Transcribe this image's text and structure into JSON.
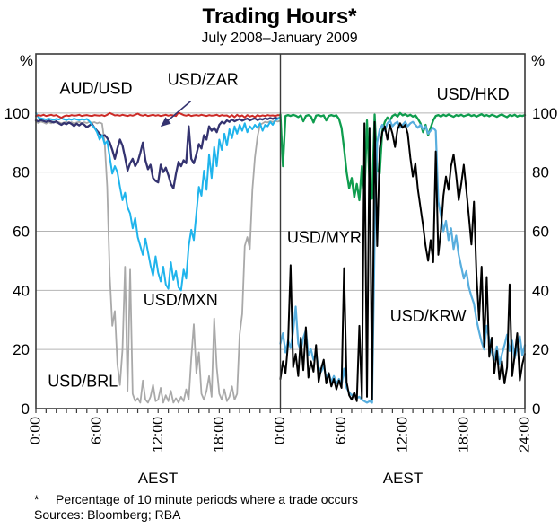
{
  "title": "Trading Hours*",
  "subtitle": "July 2008–January 2009",
  "footnote": {
    "marker": "*",
    "text": "Percentage of 10 minute periods where a trade occurs",
    "sources": "Sources: Bloomberg; RBA"
  },
  "chart_data": {
    "type": "line",
    "title": "Trading Hours*",
    "subtitle": "July 2008–January 2009",
    "unit_label": "%",
    "ylim": [
      0,
      120
    ],
    "yticks": [
      0,
      20,
      40,
      60,
      80,
      100
    ],
    "grid_on": true,
    "grid_color": "#b4b4b4",
    "frame_color": "#3a3a3a",
    "x_hours_per_panel": 24,
    "points_per_hour": 4,
    "panels": [
      {
        "id": "left",
        "axis_caption": "AEST",
        "xticks": [
          {
            "h": 0,
            "label": "0:00"
          },
          {
            "h": 6,
            "label": "6:00"
          },
          {
            "h": 12,
            "label": "12:00"
          },
          {
            "h": 18,
            "label": "18:00"
          }
        ],
        "series": [
          {
            "name": "USD/BRL",
            "color": "#a9a9a9",
            "width": 1.8,
            "values": [
              97.0,
              96.6,
              97.1,
              96.8,
              96.4,
              96.9,
              96.5,
              97.0,
              96.7,
              96.9,
              96.5,
              96.8,
              97.0,
              96.6,
              96.9,
              96.4,
              96.8,
              97.0,
              96.5,
              96.9,
              96.6,
              97.0,
              96.7,
              96.9,
              96.5,
              96.8,
              96.4,
              90.0,
              75.0,
              45.0,
              28.0,
              33.0,
              15.0,
              8.0,
              20.0,
              48.0,
              6.0,
              47.0,
              5.0,
              2.5,
              3.5,
              2.0,
              9.5,
              3.0,
              2.0,
              4.0,
              8.0,
              2.5,
              3.0,
              7.0,
              2.0,
              4.5,
              2.5,
              6.0,
              2.0,
              3.5,
              2.0,
              4.0,
              2.5,
              6.5,
              3.0,
              17.0,
              28.5,
              12.0,
              19.0,
              5.0,
              3.0,
              6.0,
              11.0,
              4.0,
              30.5,
              14.0,
              5.0,
              3.0,
              6.5,
              2.5,
              4.0,
              7.5,
              3.0,
              5.0,
              25.0,
              32.0,
              55.0,
              58.0,
              54.0,
              74.0,
              85.0,
              92.0,
              96.0,
              96.5,
              97.0,
              96.8,
              97.2,
              97.0,
              97.3,
              97.1,
              97.4
            ]
          },
          {
            "name": "USD/ZAR",
            "color": "#343370",
            "width": 2.3,
            "values": [
              97.5,
              97.2,
              97.6,
              97.3,
              97.0,
              97.4,
              97.1,
              96.8,
              97.2,
              96.5,
              96.0,
              96.6,
              96.2,
              96.8,
              96.3,
              95.6,
              96.4,
              95.8,
              96.5,
              96.0,
              95.2,
              95.8,
              96.3,
              95.0,
              94.0,
              93.0,
              92.0,
              92.5,
              91.5,
              90.0,
              87.5,
              84.5,
              88.0,
              91.0,
              89.0,
              85.0,
              80.5,
              83.0,
              84.5,
              82.0,
              83.5,
              86.5,
              90.0,
              84.0,
              81.0,
              82.5,
              78.0,
              77.0,
              76.5,
              82.5,
              80.0,
              81.5,
              79.0,
              76.0,
              74.5,
              79.5,
              83.5,
              82.0,
              84.0,
              83.0,
              95.5,
              84.5,
              83.0,
              86.0,
              89.5,
              88.0,
              92.5,
              91.0,
              95.5,
              94.0,
              95.0,
              93.5,
              96.0,
              97.0,
              96.5,
              97.5,
              97.0,
              97.8,
              97.2,
              97.6,
              98.0,
              97.4,
              97.8,
              98.1,
              97.5,
              97.9,
              98.2,
              97.6,
              98.0,
              97.8,
              98.2,
              97.9,
              98.3,
              98.0,
              98.4,
              98.1,
              98.5
            ]
          },
          {
            "name": "USD/MXN",
            "color": "#1fb4ec",
            "width": 2.0,
            "values": [
              100.0,
              98.5,
              98.2,
              98.0,
              97.8,
              98.1,
              97.9,
              97.7,
              98.0,
              97.8,
              98.2,
              97.9,
              97.6,
              98.0,
              97.7,
              98.1,
              97.8,
              97.6,
              97.9,
              97.7,
              98.0,
              97.2,
              96.0,
              95.0,
              93.5,
              91.0,
              92.5,
              89.5,
              90.5,
              85.0,
              79.5,
              82.0,
              80.0,
              75.0,
              70.5,
              73.0,
              68.0,
              66.0,
              61.0,
              64.5,
              58.0,
              55.0,
              52.0,
              57.5,
              53.0,
              48.5,
              45.0,
              51.5,
              46.0,
              43.0,
              48.0,
              42.0,
              40.5,
              49.5,
              43.5,
              46.5,
              41.0,
              40.0,
              47.0,
              44.0,
              55.0,
              60.5,
              57.0,
              66.0,
              75.0,
              72.0,
              80.5,
              74.0,
              86.0,
              78.0,
              88.5,
              82.0,
              91.0,
              87.5,
              93.0,
              89.0,
              94.5,
              91.5,
              95.5,
              93.0,
              96.0,
              94.0,
              96.5,
              93.5,
              95.5,
              94.5,
              96.0,
              95.0,
              96.5,
              94.0,
              96.0,
              95.5,
              97.0,
              96.0,
              97.5,
              98.0,
              98.5
            ]
          },
          {
            "name": "AUD/USD",
            "color": "#cc2a26",
            "width": 2.0,
            "values": [
              99.0,
              99.3,
              99.1,
              99.4,
              99.0,
              99.2,
              99.4,
              99.1,
              99.3,
              98.8,
              98.4,
              98.9,
              99.2,
              99.0,
              99.3,
              99.1,
              99.2,
              99.4,
              99.0,
              99.2,
              99.3,
              99.1,
              99.0,
              99.3,
              99.2,
              99.1,
              99.3,
              99.0,
              99.4,
              100.0,
              99.6,
              99.2,
              99.3,
              99.1,
              99.4,
              99.2,
              99.0,
              99.3,
              99.1,
              99.4,
              99.8,
              99.3,
              99.1,
              99.4,
              99.0,
              99.2,
              99.4,
              99.1,
              99.3,
              99.0,
              99.2,
              99.4,
              99.1,
              99.3,
              99.2,
              99.0,
              100.2,
              99.7,
              99.3,
              99.1,
              99.4,
              99.0,
              99.2,
              99.3,
              99.1,
              99.4,
              99.2,
              99.0,
              99.3,
              99.1,
              99.2,
              99.4,
              99.0,
              99.3,
              99.1,
              99.2,
              98.7,
              99.3,
              98.6,
              99.4,
              98.8,
              99.2,
              98.5,
              99.3,
              98.8,
              99.1,
              98.6,
              99.3,
              98.9,
              99.2,
              99.0,
              99.3,
              99.1,
              99.2,
              99.0,
              99.3,
              99.2
            ]
          }
        ],
        "labels": [
          {
            "text": "AUD/USD",
            "color": "#cc2a26",
            "t": 5.9,
            "v": 106.5
          },
          {
            "text": "USD/ZAR",
            "color": "#343370",
            "t": 16.4,
            "v": 109.5,
            "arrow": {
              "from_t": 15.2,
              "from_v": 104.0,
              "to_t": 12.3,
              "to_v": 95.5
            }
          },
          {
            "text": "USD/MXN",
            "color": "#1fb4ec",
            "t": 14.2,
            "v": 35.0
          },
          {
            "text": "USD/BRL",
            "color": "#a9a9a9",
            "t": 4.6,
            "v": 7.5
          }
        ]
      },
      {
        "id": "right",
        "axis_caption": "AEST",
        "xticks": [
          {
            "h": 0,
            "label": "0:00"
          },
          {
            "h": 6,
            "label": "6:00"
          },
          {
            "h": 12,
            "label": "12:00"
          },
          {
            "h": 18,
            "label": "18:00"
          },
          {
            "h": 24,
            "label": "24:00"
          }
        ],
        "series": [
          {
            "name": "USD/HKD",
            "color": "#0f9d4e",
            "width": 2.3,
            "values": [
              99.5,
              82.0,
              99.0,
              99.3,
              99.0,
              99.4,
              99.1,
              98.6,
              99.2,
              97.2,
              99.0,
              99.3,
              98.8,
              96.8,
              99.1,
              99.3,
              98.9,
              99.2,
              97.5,
              99.0,
              99.3,
              99.0,
              99.2,
              98.0,
              95.0,
              88.0,
              80.0,
              74.5,
              78.0,
              71.5,
              76.0,
              70.5,
              82.0,
              72.0,
              97.5,
              76.0,
              71.0,
              99.5,
              81.0,
              79.5,
              94.0,
              97.0,
              98.5,
              97.5,
              99.0,
              99.5,
              98.8,
              100.0,
              99.2,
              99.6,
              99.0,
              99.4,
              98.8,
              99.2,
              98.0,
              96.5,
              93.5,
              96.0,
              92.5,
              95.0,
              97.5,
              99.0,
              99.3,
              98.8,
              99.4,
              99.0,
              99.5,
              99.1,
              98.7,
              99.3,
              99.0,
              99.4,
              98.9,
              99.2,
              99.5,
              99.0,
              99.3,
              98.8,
              99.2,
              99.6,
              99.0,
              99.3,
              98.9,
              99.4,
              99.1,
              98.7,
              99.2,
              99.5,
              99.0,
              98.6,
              99.3,
              99.0,
              99.4,
              98.8,
              99.2,
              99.0,
              99.3
            ]
          },
          {
            "name": "USD/KRW",
            "color": "#58aede",
            "width": 2.2,
            "values": [
              22.0,
              25.5,
              19.0,
              23.0,
              20.5,
              26.0,
              34.5,
              22.0,
              19.5,
              24.0,
              26.5,
              18.0,
              20.0,
              16.5,
              18.5,
              14.0,
              12.5,
              14.5,
              10.5,
              12.0,
              9.0,
              11.0,
              8.5,
              10.0,
              8.0,
              13.5,
              7.0,
              5.5,
              4.5,
              5.0,
              3.5,
              4.0,
              3.0,
              2.5,
              2.0,
              2.5,
              2.0,
              58.0,
              90.0,
              94.5,
              96.0,
              94.0,
              96.5,
              97.5,
              95.5,
              96.5,
              97.0,
              95.0,
              96.0,
              97.0,
              95.5,
              96.5,
              97.0,
              96.0,
              95.0,
              96.0,
              94.5,
              95.5,
              93.0,
              94.0,
              95.0,
              94.0,
              70.0,
              65.5,
              60.0,
              63.5,
              57.0,
              61.0,
              54.0,
              58.5,
              52.0,
              48.0,
              44.0,
              46.5,
              41.0,
              38.0,
              35.5,
              30.0,
              26.0,
              22.5,
              20.0,
              28.0,
              23.5,
              19.0,
              16.5,
              21.0,
              15.0,
              18.5,
              21.5,
              25.0,
              19.5,
              23.0,
              17.0,
              21.0,
              24.5,
              18.0,
              21.5
            ]
          },
          {
            "name": "USD/MYR",
            "color": "#000000",
            "width": 2.0,
            "values": [
              10.0,
              16.0,
              12.0,
              22.0,
              48.5,
              14.0,
              18.5,
              11.0,
              24.0,
              13.0,
              27.5,
              10.5,
              16.0,
              12.5,
              21.5,
              9.0,
              13.5,
              16.5,
              8.5,
              12.0,
              7.5,
              10.0,
              6.5,
              9.5,
              7.0,
              47.5,
              9.0,
              4.5,
              3.0,
              5.5,
              2.5,
              28.0,
              3.5,
              96.5,
              4.0,
              95.0,
              3.0,
              97.0,
              55.0,
              88.0,
              93.5,
              95.5,
              91.0,
              96.0,
              93.0,
              88.5,
              94.5,
              96.5,
              95.0,
              96.0,
              93.0,
              85.0,
              78.5,
              83.0,
              74.0,
              68.0,
              62.0,
              55.0,
              50.0,
              57.0,
              49.5,
              87.0,
              52.0,
              60.0,
              72.0,
              78.5,
              74.0,
              82.0,
              86.0,
              79.0,
              70.5,
              76.0,
              82.5,
              74.0,
              65.0,
              55.5,
              70.0,
              45.0,
              30.0,
              48.0,
              21.0,
              44.5,
              17.5,
              24.0,
              12.0,
              19.5,
              10.0,
              16.0,
              8.5,
              14.0,
              42.0,
              11.0,
              18.0,
              25.5,
              9.5,
              15.0,
              18.5
            ]
          }
        ],
        "labels": [
          {
            "text": "USD/HKD",
            "color": "#0f9d4e",
            "t": 18.9,
            "v": 104.5
          },
          {
            "text": "USD/MYR",
            "color": "#000000",
            "t": 4.3,
            "v": 56.0
          },
          {
            "text": "USD/KRW",
            "color": "#58aede",
            "t": 14.5,
            "v": 29.5
          }
        ]
      }
    ]
  }
}
